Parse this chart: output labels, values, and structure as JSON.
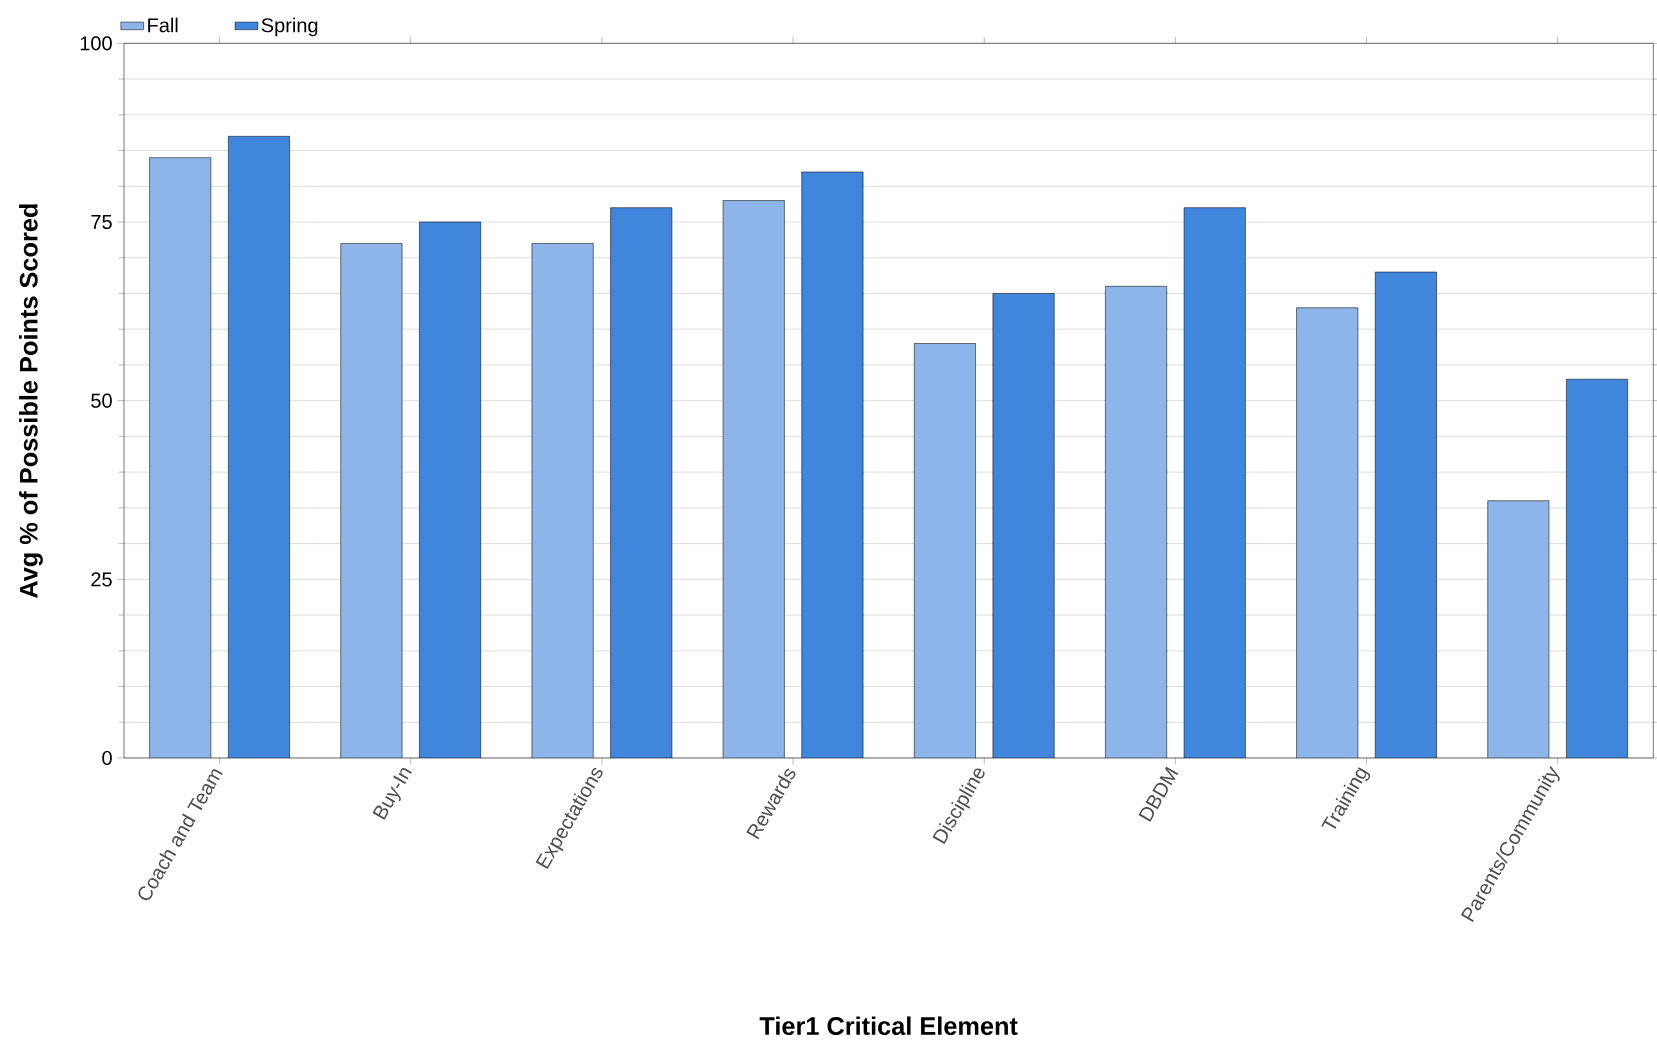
{
  "chart_data": {
    "type": "bar",
    "xlabel": "Tier1 Critical Element",
    "ylabel": "Avg % of Possible Points Scored",
    "categories": [
      "Coach and Team",
      "Buy-In",
      "Expectations",
      "Rewards",
      "Discipline",
      "DBDM",
      "Training",
      "Parents/Community"
    ],
    "series": [
      {
        "name": "Fall",
        "color": "#8db5ea",
        "values": [
          84,
          72,
          72,
          78,
          58,
          66,
          63,
          36
        ]
      },
      {
        "name": "Spring",
        "color": "#3f86dc",
        "values": [
          87,
          75,
          77,
          82,
          65,
          77,
          68,
          53
        ]
      }
    ],
    "ylim": [
      0,
      100
    ],
    "yticks": [
      0,
      25,
      50,
      75,
      100
    ],
    "grid": "y",
    "legend": "top left"
  }
}
